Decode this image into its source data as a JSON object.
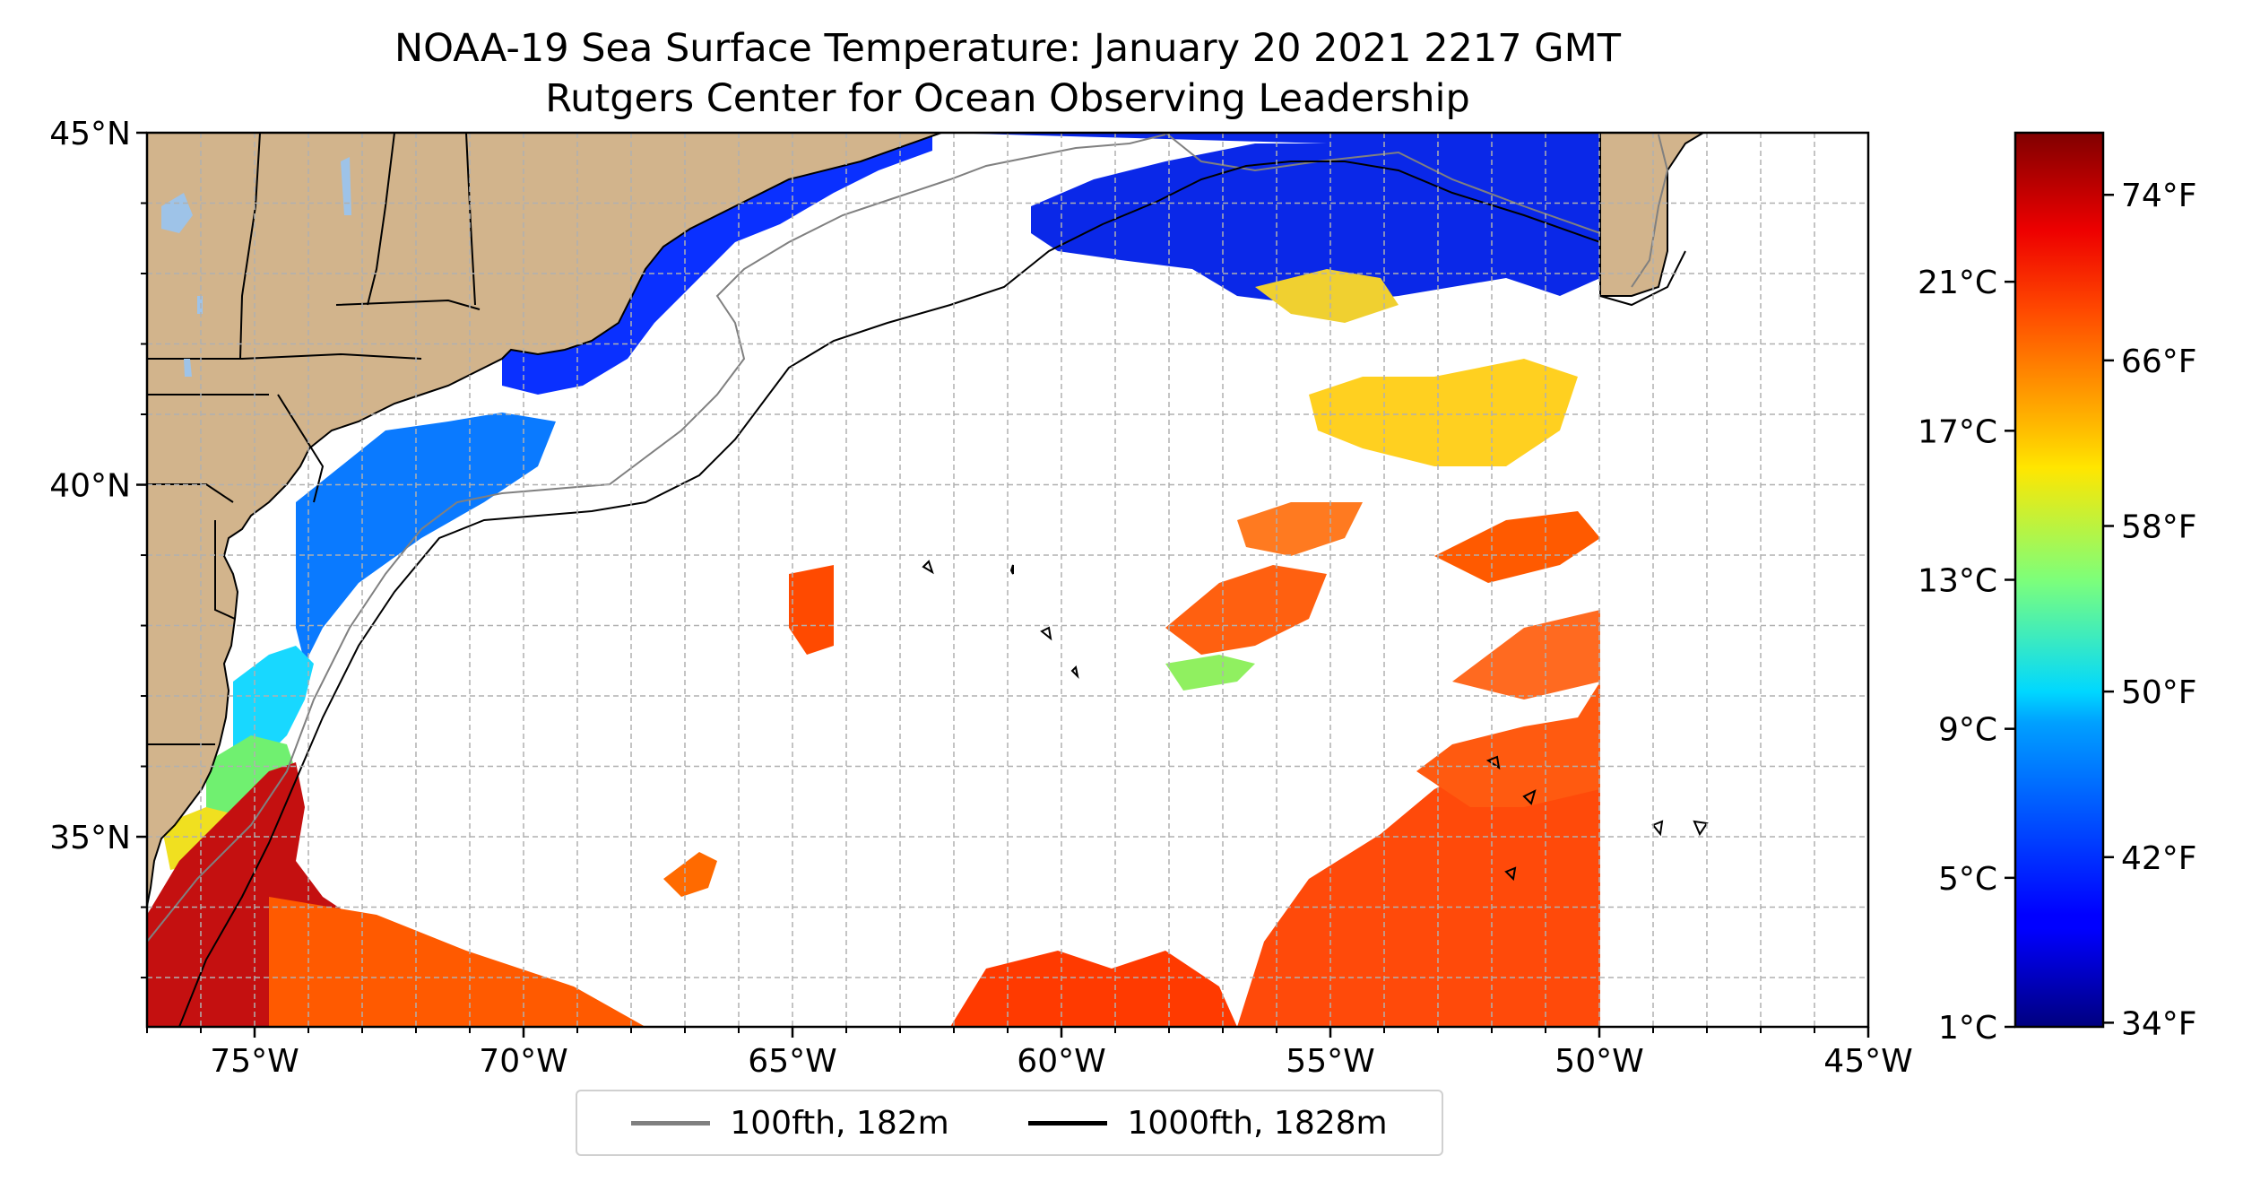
{
  "title": {
    "line1": "NOAA-19 Sea Surface Temperature: January 20 2021 2217 GMT",
    "line2": "Rutgers Center for Ocean Observing Leadership"
  },
  "map": {
    "lon_range": [
      -77,
      -45
    ],
    "lat_range": [
      32.3,
      45
    ],
    "lat_ticks": [
      {
        "value": 45,
        "label": "45°N"
      },
      {
        "value": 40,
        "label": "40°N"
      },
      {
        "value": 35,
        "label": "35°N"
      }
    ],
    "lon_ticks": [
      {
        "value": -75,
        "label": "75°W"
      },
      {
        "value": -70,
        "label": "70°W"
      },
      {
        "value": -65,
        "label": "65°W"
      },
      {
        "value": -60,
        "label": "60°W"
      },
      {
        "value": -55,
        "label": "55°W"
      },
      {
        "value": -50,
        "label": "50°W"
      },
      {
        "value": -45,
        "label": "45°W"
      }
    ],
    "gridlines": "dashed, every 1 degree",
    "land_color": "#d2b48c",
    "satellite_swath_east_edge_lon": -50
  },
  "legend": {
    "items": [
      {
        "label": "100fth, 182m",
        "color": "#808080"
      },
      {
        "label": "1000fth, 1828m",
        "color": "#000000"
      }
    ]
  },
  "colorbar": {
    "colormap": "jet",
    "range_c": [
      1,
      25
    ],
    "celsius_ticks": [
      {
        "value": 1,
        "label": "1°C"
      },
      {
        "value": 5,
        "label": "5°C"
      },
      {
        "value": 9,
        "label": "9°C"
      },
      {
        "value": 13,
        "label": "13°C"
      },
      {
        "value": 17,
        "label": "17°C"
      },
      {
        "value": 21,
        "label": "21°C"
      }
    ],
    "fahrenheit_ticks": [
      {
        "value": 34,
        "label": "34°F"
      },
      {
        "value": 42,
        "label": "42°F"
      },
      {
        "value": 50,
        "label": "50°F"
      },
      {
        "value": 58,
        "label": "58°F"
      },
      {
        "value": 66,
        "label": "66°F"
      },
      {
        "value": 74,
        "label": "74°F"
      }
    ]
  }
}
